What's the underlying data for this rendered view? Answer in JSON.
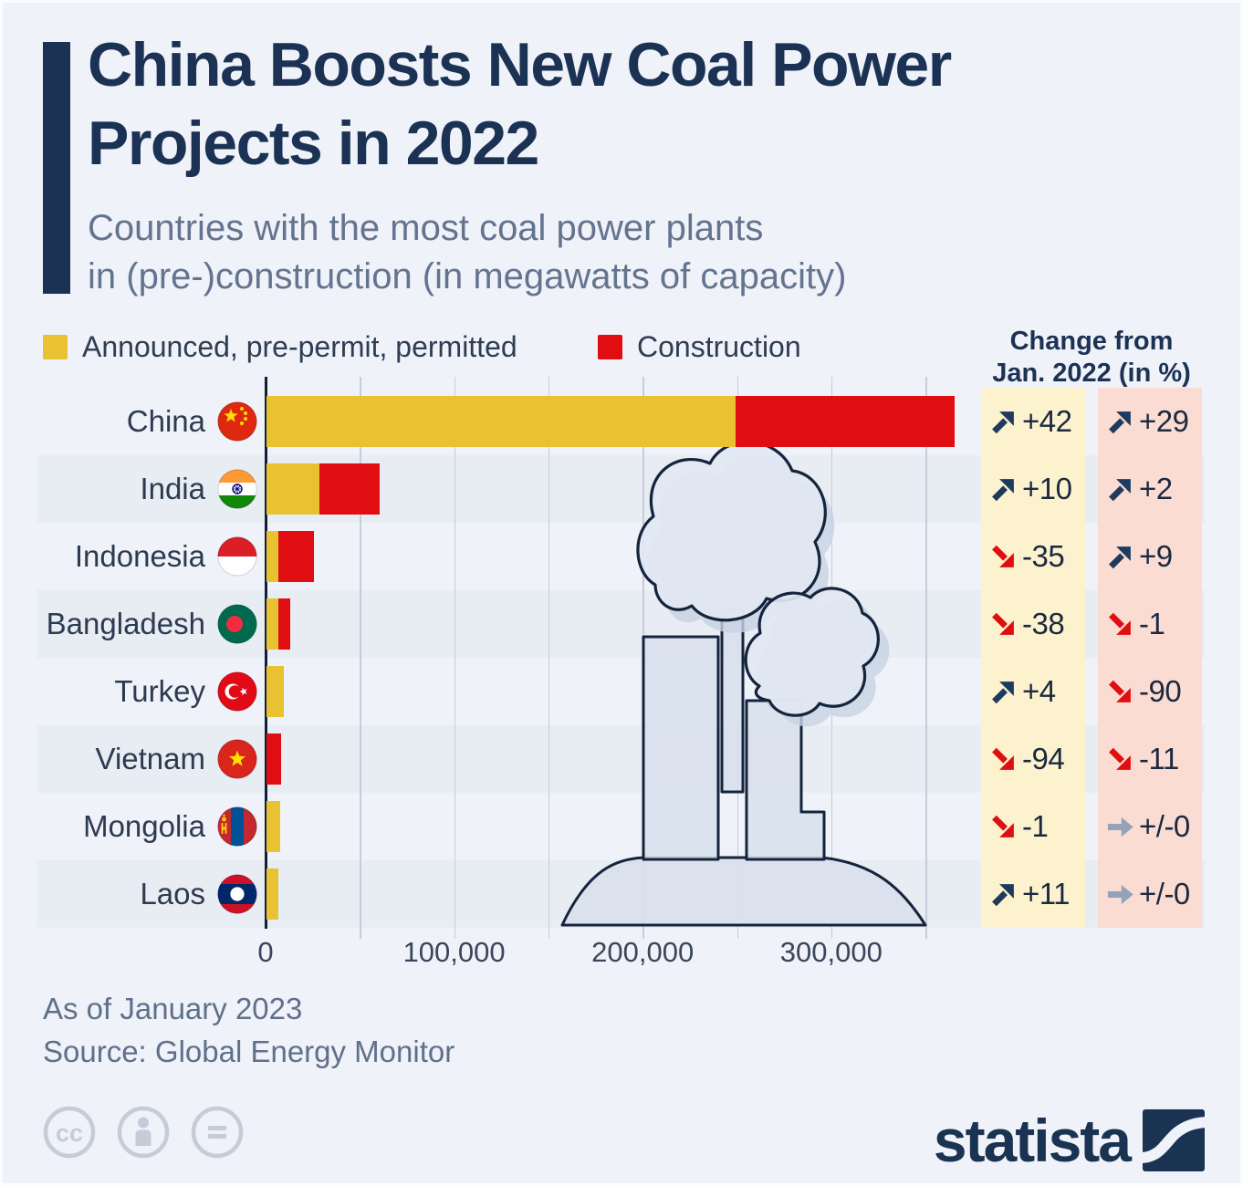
{
  "header": {
    "title_line1": "China Boosts New Coal Power",
    "title_line2": "Projects in 2022",
    "subtitle_line1": "Countries with the most coal power plants",
    "subtitle_line2": "in (pre-)construction (in megawatts of capacity)"
  },
  "legend": [
    {
      "label": "Announced, pre-permit, permitted",
      "color": "#E9C234"
    },
    {
      "label": "Construction",
      "color": "#E00D11"
    }
  ],
  "change_header": {
    "line1": "Change from",
    "line2": "Jan. 2022 (in %)"
  },
  "chart_data": {
    "type": "bar",
    "orientation": "horizontal",
    "unit": "megawatts of capacity",
    "categories": [
      "China",
      "India",
      "Indonesia",
      "Bangladesh",
      "Turkey",
      "Vietnam",
      "Mongolia",
      "Laos"
    ],
    "flags": [
      "cn",
      "in",
      "id",
      "bd",
      "tr",
      "vn",
      "mn",
      "la"
    ],
    "series": [
      {
        "name": "Announced, pre-permit, permitted",
        "color": "#E9C234",
        "values": [
          249000,
          28000,
          6500,
          6500,
          9000,
          0,
          7000,
          6500
        ]
      },
      {
        "name": "Construction",
        "color": "#E00D11",
        "values": [
          116000,
          32000,
          18500,
          6000,
          0,
          7500,
          0,
          0
        ]
      }
    ],
    "change_from_jan_2022_pct": {
      "announced_values": [
        "+42",
        "+10",
        "-35",
        "-38",
        "+4",
        "-94",
        "-1",
        "+11"
      ],
      "announced_directions": [
        "up",
        "up",
        "down",
        "down",
        "up",
        "down",
        "down",
        "up"
      ],
      "construction_values": [
        "+29",
        "+2",
        "+9",
        "-1",
        "-90",
        "-11",
        "+/-0",
        "+/-0"
      ],
      "construction_directions": [
        "up",
        "up",
        "up",
        "down",
        "down",
        "down",
        "neutral",
        "neutral"
      ]
    },
    "x_axis": {
      "tick_labels": [
        "0",
        "100,000",
        "200,000",
        "300,000"
      ],
      "tick_values": [
        0,
        100000,
        200000,
        300000
      ],
      "gridline_step": 50000,
      "max": 366000
    },
    "title": "China Boosts New Coal Power Projects in 2022",
    "legend_position": "top",
    "grid": true
  },
  "colors": {
    "background": "#EFF2F8",
    "row_band": "#E8ECF3",
    "bar_yellow": "#E9C234",
    "bar_red": "#E00D11",
    "column_announced_bg": "#FCF3CE",
    "column_construction_bg": "#FBDCD2",
    "arrow_up": "#1F3A5F",
    "arrow_down": "#E00D11",
    "arrow_neutral": "#93A3B8",
    "title_navy": "#1C3254"
  },
  "footer": {
    "note": "As of January 2023",
    "source": "Source: Global Energy Monitor",
    "brand": "statista"
  }
}
